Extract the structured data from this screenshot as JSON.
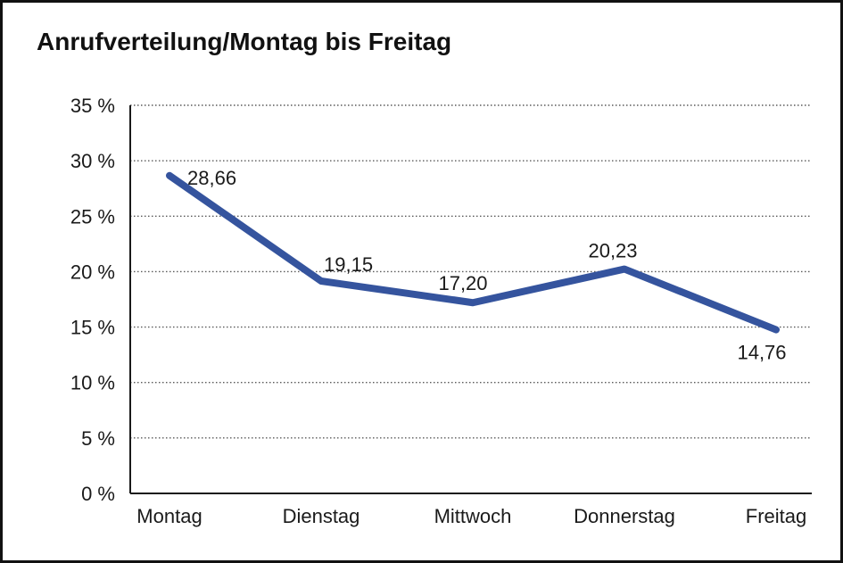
{
  "page": {
    "title": "Anrufverteilung/Montag bis Freitag"
  },
  "chart_data": {
    "type": "line",
    "title": "Anrufverteilung/Montag bis Freitag",
    "categories": [
      "Montag",
      "Dienstag",
      "Mittwoch",
      "Donnerstag",
      "Freitag"
    ],
    "series": [
      {
        "name": "Anrufverteilung",
        "values": [
          28.66,
          19.15,
          17.2,
          20.23,
          14.76
        ]
      }
    ],
    "value_labels": [
      "28,66",
      "19,15",
      "17,20",
      "20,23",
      "14,76"
    ],
    "xlabel": "",
    "ylabel": "",
    "unit": "%",
    "ylim": [
      0,
      35
    ],
    "y_tick_step": 5,
    "y_tick_labels": [
      "35 %",
      "30 %",
      "25 %",
      "20 %",
      "15 %",
      "10 %",
      "5 %",
      "0 %"
    ],
    "grid": "horizontal-dotted",
    "legend": "none"
  },
  "colors": {
    "line": "#35549e",
    "grid": "#5a5a5a",
    "axis": "#1a1a1a",
    "text": "#1a1a1a",
    "background": "#ffffff",
    "border": "#111111"
  }
}
